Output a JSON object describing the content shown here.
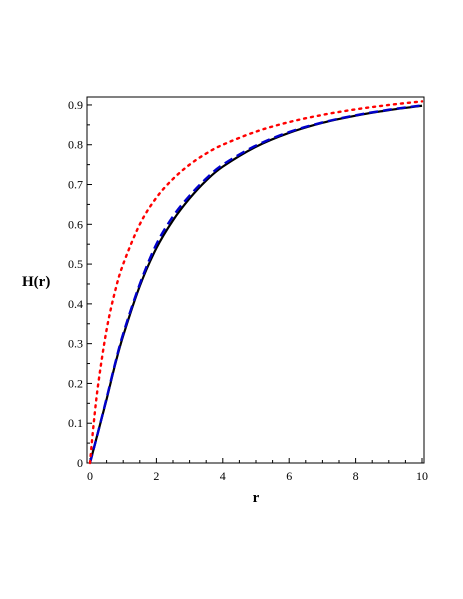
{
  "chart_data": {
    "type": "line",
    "xlabel": "r",
    "ylabel": "H(r)",
    "xlim": [
      0,
      10
    ],
    "ylim": [
      0,
      0.92
    ],
    "x_ticks": [
      0,
      2,
      4,
      6,
      8,
      10
    ],
    "y_ticks": [
      0,
      0.1,
      0.2,
      0.3,
      0.4,
      0.5,
      0.6,
      0.7,
      0.8,
      0.9
    ],
    "x_tick_labels": [
      "0",
      "2",
      "4",
      "6",
      "8",
      "10"
    ],
    "y_tick_labels": [
      "0",
      "0.1",
      "0.2",
      "0.3",
      "0.4",
      "0.5",
      "0.6",
      "0.7",
      "0.8",
      "0.9"
    ],
    "grid": false,
    "legend": "none",
    "series": [
      {
        "style": "solid",
        "color": "#000000",
        "x": [
          0,
          0.25,
          0.5,
          0.75,
          1,
          1.5,
          2,
          2.5,
          3,
          3.5,
          4,
          5,
          6,
          7,
          8,
          9,
          10
        ],
        "y": [
          0,
          0.08,
          0.16,
          0.245,
          0.32,
          0.445,
          0.54,
          0.61,
          0.665,
          0.71,
          0.745,
          0.795,
          0.83,
          0.855,
          0.873,
          0.887,
          0.898
        ]
      },
      {
        "style": "dashed",
        "color": "#0000cc",
        "x": [
          0,
          0.25,
          0.5,
          0.75,
          1,
          1.5,
          2,
          2.5,
          3,
          3.5,
          4,
          5,
          6,
          7,
          8,
          9,
          10
        ],
        "y": [
          0,
          0.08,
          0.163,
          0.248,
          0.325,
          0.45,
          0.55,
          0.62,
          0.672,
          0.715,
          0.75,
          0.798,
          0.832,
          0.856,
          0.874,
          0.888,
          0.899
        ]
      },
      {
        "style": "dotted",
        "color": "#ff0000",
        "x": [
          0,
          0.1,
          0.25,
          0.5,
          0.75,
          1,
          1.5,
          2,
          2.5,
          3,
          3.5,
          4,
          5,
          6,
          7,
          8,
          9,
          10
        ],
        "y": [
          0,
          0.09,
          0.2,
          0.335,
          0.43,
          0.5,
          0.6,
          0.667,
          0.714,
          0.75,
          0.778,
          0.8,
          0.833,
          0.857,
          0.875,
          0.889,
          0.9,
          0.909
        ]
      }
    ]
  }
}
